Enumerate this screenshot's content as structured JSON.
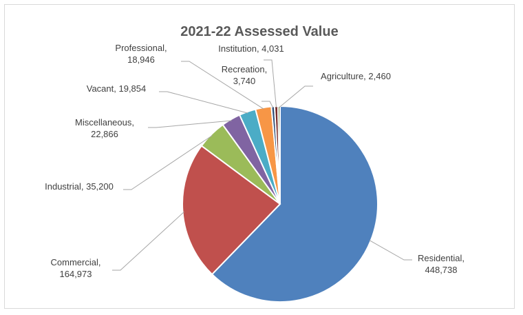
{
  "chart_data": {
    "type": "pie",
    "title": "2021-22 Assessed Value",
    "legend": "none",
    "slices": [
      {
        "label_lines": [
          "Residential,",
          "448,738"
        ],
        "category": "Residential",
        "value": 448738,
        "color": "#4F81BD"
      },
      {
        "label_lines": [
          "Commercial,",
          "164,973"
        ],
        "category": "Commercial",
        "value": 164973,
        "color": "#C0504D"
      },
      {
        "label_lines": [
          "Industrial, 35,200"
        ],
        "category": "Industrial",
        "value": 35200,
        "color": "#9BBB59"
      },
      {
        "label_lines": [
          "Miscellaneous,",
          "22,866"
        ],
        "category": "Miscellaneous",
        "value": 22866,
        "color": "#8064A2"
      },
      {
        "label_lines": [
          "Vacant, 19,854"
        ],
        "category": "Vacant",
        "value": 19854,
        "color": "#4BACC6"
      },
      {
        "label_lines": [
          "Professional,",
          "18,946"
        ],
        "category": "Professional",
        "value": 18946,
        "color": "#F79646"
      },
      {
        "label_lines": [
          "Recreation,",
          "3,740"
        ],
        "category": "Recreation",
        "value": 3740,
        "color": "#2C4D75"
      },
      {
        "label_lines": [
          "Institution, 4,031"
        ],
        "category": "Institution",
        "value": 4031,
        "color": "#772C2A"
      },
      {
        "label_lines": [
          "Agriculture, 2,460"
        ],
        "category": "Agriculture",
        "value": 2460,
        "color": "#5F7530"
      }
    ]
  }
}
